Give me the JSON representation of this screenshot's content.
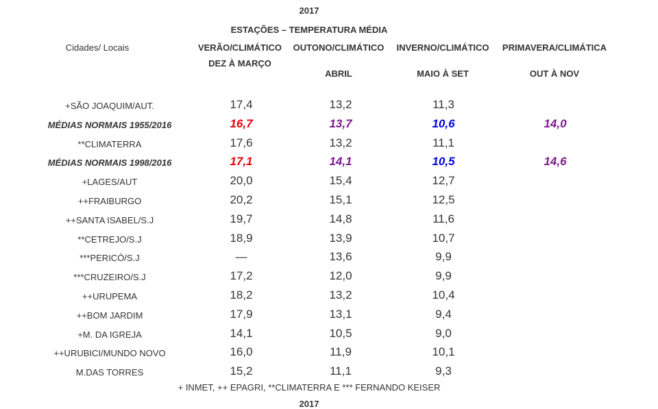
{
  "year": "2017",
  "title": "ESTAÇÕES – TEMPERATURA MÉDIA",
  "columns": {
    "locations": "Cidades/ Locais",
    "summer": "VERÃO/CLIMÁTICO",
    "summer_sub": "DEZ À MARÇO",
    "autumn": "OUTONO/CLIMÁTICO",
    "autumn_sub": "ABRIL",
    "winter": "INVERNO/CLIMÁTICO",
    "winter_sub": "MAIO À SET",
    "spring": "PRIMAVERA/CLIMÁTICA",
    "spring_sub": "OUT À NOV"
  },
  "colors": {
    "summer_norm": "#e8000b",
    "autumn_norm": "#7a1a8c",
    "winter_norm": "#0000e0",
    "spring_norm": "#7a1a8c"
  },
  "rows": [
    {
      "location": "+SÃO JOAQUIM/AUT.",
      "summer": "17,4",
      "autumn": "13,2",
      "winter": "11,3",
      "spring": ""
    },
    {
      "location": "MÉDIAS NORMAIS 1955/2016",
      "summer": "16,7",
      "autumn": "13,7",
      "winter": "10,6",
      "spring": "14,0",
      "norm": true
    },
    {
      "location": "**CLIMATERRA",
      "summer": "17,6",
      "autumn": "13,2",
      "winter": "11,1",
      "spring": ""
    },
    {
      "location": "MÉDIAS NORMAIS 1998/2016",
      "summer": "17,1",
      "autumn": "14,1",
      "winter": "10,5",
      "spring": "14,6",
      "norm": true
    },
    {
      "location": "+LAGES/AUT",
      "summer": "20,0",
      "autumn": "15,4",
      "winter": "12,7",
      "spring": ""
    },
    {
      "location": "++FRAIBURGO",
      "summer": "20,2",
      "autumn": "15,1",
      "winter": "12,5",
      "spring": ""
    },
    {
      "location": "++SANTA ISABEL/S.J",
      "summer": "19,7",
      "autumn": "14,8",
      "winter": "11,6",
      "spring": ""
    },
    {
      "location": "**CETREJO/S.J",
      "summer": "18,9",
      "autumn": "13,9",
      "winter": "10,7",
      "spring": ""
    },
    {
      "location": "***PERICÓ/S.J",
      "summer": "—",
      "autumn": "13,6",
      "winter": "9,9",
      "spring": ""
    },
    {
      "location": "***CRUZEIRO/S.J",
      "summer": "17,2",
      "autumn": "12,0",
      "winter": "9,9",
      "spring": ""
    },
    {
      "location": "++URUPEMA",
      "summer": "18,2",
      "autumn": "13,2",
      "winter": "10,4",
      "spring": ""
    },
    {
      "location": "++BOM JARDIM",
      "summer": "17,9",
      "autumn": "13,1",
      "winter": "9,4",
      "spring": ""
    },
    {
      "location": "+M. DA IGREJA",
      "summer": "14,1",
      "autumn": "10,5",
      "winter": "9,0",
      "spring": ""
    },
    {
      "location": "++URUBICI/MUNDO NOVO",
      "summer": "16,0",
      "autumn": "11,9",
      "winter": "10,1",
      "spring": ""
    },
    {
      "location": "M.DAS TORRES",
      "summer": "15,2",
      "autumn": "11,1",
      "winter": "9,3",
      "spring": ""
    }
  ],
  "footnote": "+ INMET, ++ EPAGRI, **CLIMATERRA E *** FERNANDO KEISER",
  "next_year_cut": "2017"
}
